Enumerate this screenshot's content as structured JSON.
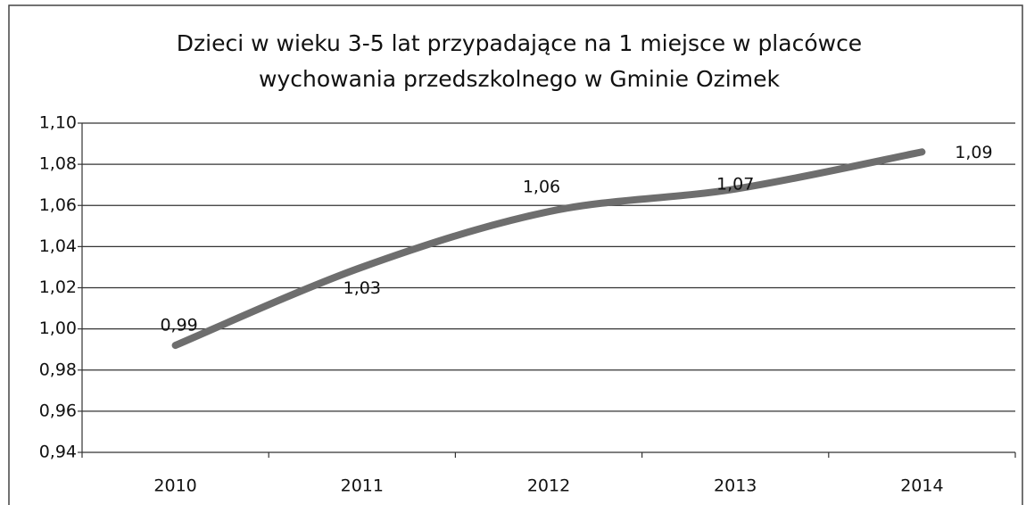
{
  "chart_data": {
    "type": "line",
    "title_lines": [
      "Dzieci w wieku 3-5 lat przypadające na 1 miejsce w placówce",
      "wychowania przedszkolnego w Gminie Ozimek"
    ],
    "categories": [
      "2010",
      "2011",
      "2012",
      "2013",
      "2014"
    ],
    "values": [
      0.992,
      1.03,
      1.057,
      1.068,
      1.086
    ],
    "value_labels": [
      "0,99",
      "1,03",
      "1,06",
      "1,07",
      "1,09"
    ],
    "color": "#6e6e6e",
    "ylim": [
      0.94,
      1.1
    ],
    "yticks": [
      {
        "value": 0.94,
        "label": "0,94"
      },
      {
        "value": 0.96,
        "label": "0,96"
      },
      {
        "value": 0.98,
        "label": "0,98"
      },
      {
        "value": 1.0,
        "label": "1,00"
      },
      {
        "value": 1.02,
        "label": "1,02"
      },
      {
        "value": 1.04,
        "label": "1,04"
      },
      {
        "value": 1.06,
        "label": "1,06"
      },
      {
        "value": 1.08,
        "label": "1,08"
      },
      {
        "value": 1.1,
        "label": "1,10"
      }
    ],
    "grid": true
  }
}
